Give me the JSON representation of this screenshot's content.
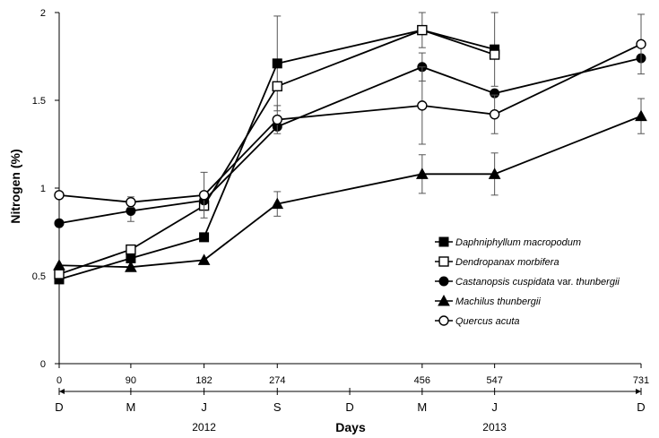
{
  "chart_data": {
    "type": "line",
    "ylabel": "Nitrogen (%)",
    "xlabel": "Days",
    "ylim": [
      0,
      2
    ],
    "yticks": [
      "0",
      "0.5",
      "1",
      "1.5",
      "2"
    ],
    "xlim": [
      0,
      731
    ],
    "x": [
      0,
      90,
      182,
      274,
      456,
      547,
      731
    ],
    "xtick_labels": [
      "0",
      "90",
      "182",
      "274",
      "456",
      "547",
      "731"
    ],
    "month_axis": {
      "labels": [
        {
          "day": 0,
          "text": "D"
        },
        {
          "day": 90,
          "text": "M"
        },
        {
          "day": 182,
          "text": "J"
        },
        {
          "day": 274,
          "text": "S"
        },
        {
          "day": 365,
          "text": "D"
        },
        {
          "day": 456,
          "text": "M"
        },
        {
          "day": 547,
          "text": "J"
        },
        {
          "day": 731,
          "text": "D"
        }
      ],
      "years": [
        {
          "day": 182,
          "text": "2012"
        },
        {
          "day": 547,
          "text": "2013"
        }
      ]
    },
    "grid": false,
    "legend_placement": "center-right",
    "series": [
      {
        "name": "Daphniphyllum macropodum",
        "marker": "square-filled",
        "x": [
          0,
          90,
          182,
          274,
          456,
          547
        ],
        "values": [
          0.48,
          0.6,
          0.72,
          1.71,
          1.9,
          1.79
        ],
        "err": [
          0,
          0,
          0,
          0.27,
          0.1,
          0.21
        ]
      },
      {
        "name": "Dendropanax morbifera",
        "marker": "square-open",
        "x": [
          0,
          90,
          182,
          274,
          456,
          547
        ],
        "values": [
          0.51,
          0.65,
          0.9,
          1.58,
          1.9,
          1.76
        ],
        "err": [
          0,
          0,
          0,
          0,
          0,
          0
        ]
      },
      {
        "name": "Castanopsis cuspidata var. thunbergii",
        "marker": "circle-filled",
        "x": [
          0,
          90,
          182,
          274,
          456,
          547,
          731
        ],
        "values": [
          0.8,
          0.87,
          0.93,
          1.35,
          1.69,
          1.54,
          1.74
        ],
        "err": [
          0,
          0.06,
          0,
          0,
          0.08,
          0,
          0
        ]
      },
      {
        "name": "Machilus thunbergii",
        "marker": "triangle-filled",
        "x": [
          0,
          90,
          182,
          274,
          456,
          547,
          731
        ],
        "values": [
          0.56,
          0.55,
          0.59,
          0.91,
          1.08,
          1.08,
          1.41
        ],
        "err": [
          0,
          0,
          0,
          0.07,
          0.11,
          0.12,
          0.1
        ]
      },
      {
        "name": "Quercus acuta",
        "marker": "circle-open",
        "x": [
          0,
          90,
          182,
          274,
          456,
          547,
          731
        ],
        "values": [
          0.96,
          0.92,
          0.96,
          1.39,
          1.47,
          1.42,
          1.82
        ],
        "err": [
          0,
          0.03,
          0.13,
          0.08,
          0.22,
          0.11,
          0.17
        ]
      }
    ]
  }
}
